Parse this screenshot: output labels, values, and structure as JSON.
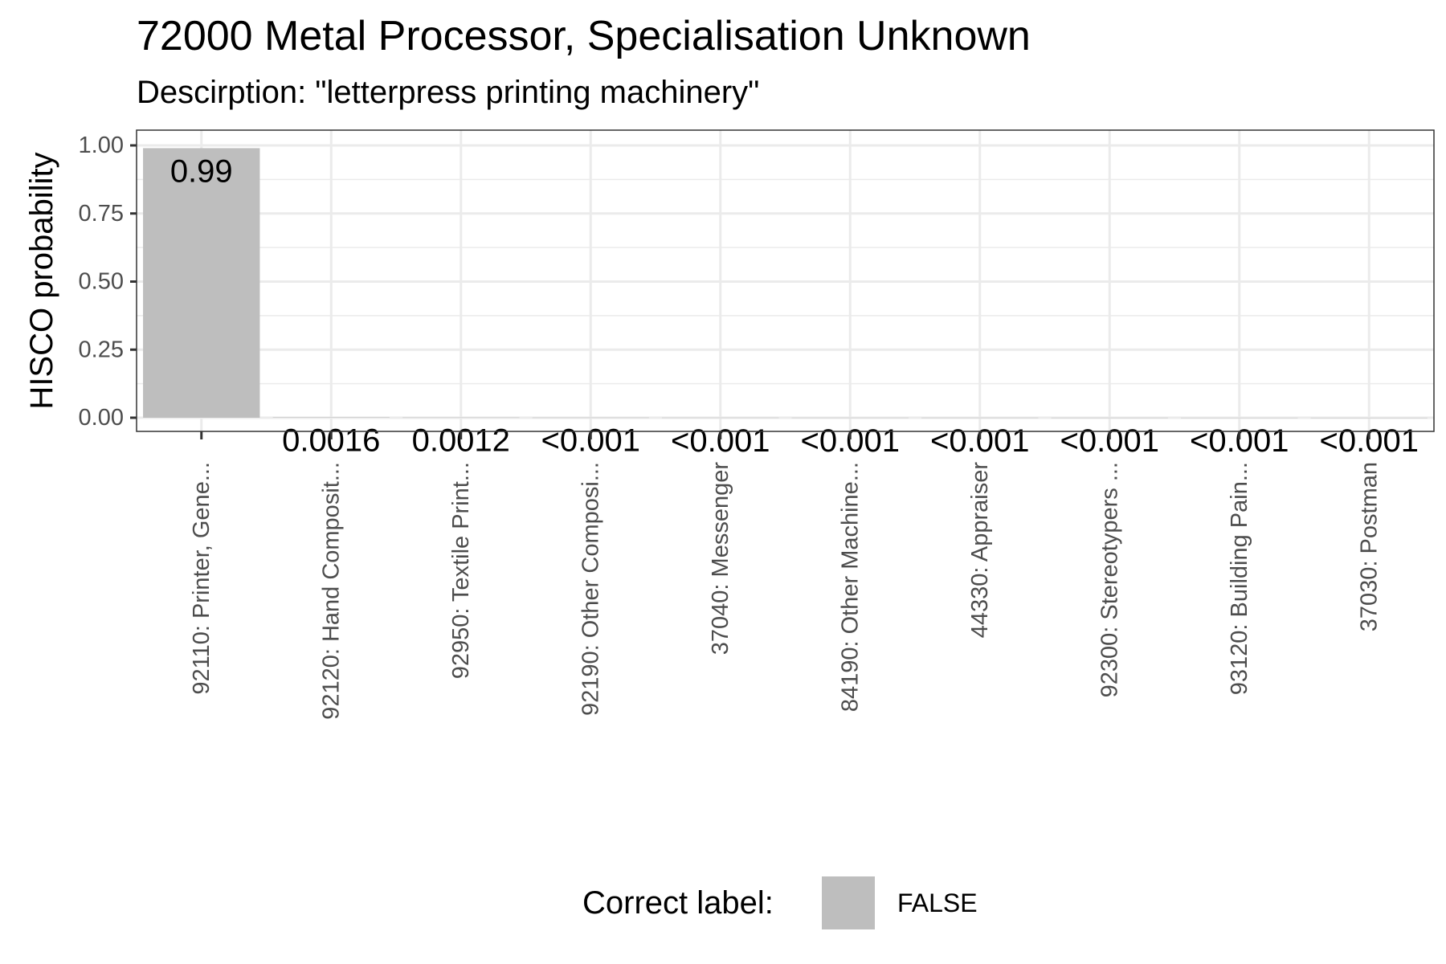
{
  "chart_data": {
    "type": "bar",
    "title": "72000 Metal Processor, Specialisation Unknown",
    "subtitle": "Descirption: \"letterpress printing machinery\"",
    "xlabel": "",
    "ylabel": "HISCO probability",
    "ylim": [
      0,
      1.05
    ],
    "yticks": [
      0,
      0.25,
      0.5,
      0.75,
      1.0
    ],
    "ytick_labels": [
      "0.00",
      "0.25",
      "0.50",
      "0.75",
      "1.00"
    ],
    "categories": [
      "92110: Printer, Gene...",
      "92120: Hand Composit...",
      "92950: Textile Print...",
      "92190: Other Composi...",
      "37040: Messenger",
      "84190: Other Machine...",
      "44330: Appraiser",
      "92300: Stereotypers ...",
      "93120: Building Pain...",
      "37030: Postman"
    ],
    "values": [
      0.99,
      0.0016,
      0.0012,
      0.0008,
      0.0006,
      0.0005,
      0.0004,
      0.0003,
      0.0002,
      0.0001
    ],
    "data_labels": [
      "0.99",
      "0.0016",
      "0.0012",
      "<0.001",
      "<0.001",
      "<0.001",
      "<0.001",
      "<0.001",
      "<0.001",
      "<0.001"
    ],
    "grid": true,
    "legend": {
      "title": "Correct label:",
      "entries": [
        {
          "label": "FALSE",
          "color": "#bebebe"
        }
      ],
      "placement": "bottom"
    },
    "bar_color": "#bebebe"
  }
}
